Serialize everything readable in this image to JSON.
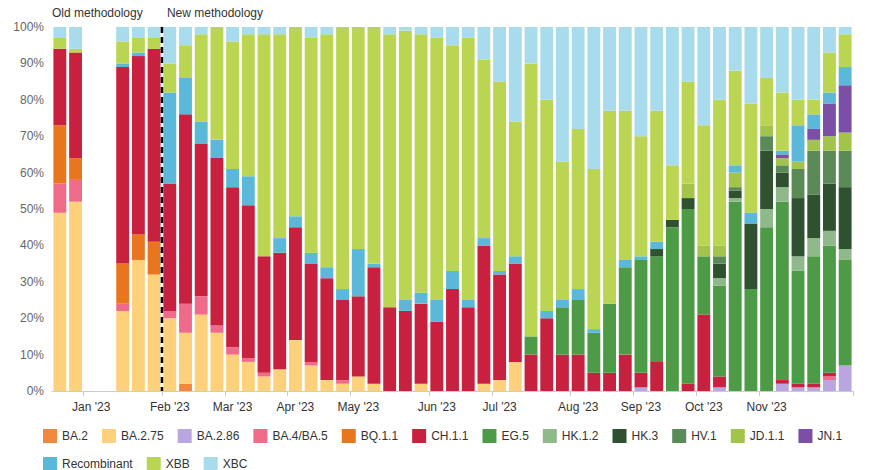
{
  "chart_data": {
    "type": "bar",
    "stacked": true,
    "legend": "bottom",
    "grid": false,
    "data_labels": false,
    "annotations": [
      {
        "text": "Old methodology",
        "x": 0
      },
      {
        "text": "New methodology",
        "x": 7
      }
    ],
    "categories": [
      null,
      null,
      "Jan '23",
      null,
      null,
      null,
      null,
      "Feb '23",
      null,
      null,
      null,
      "Mar '23",
      null,
      null,
      null,
      "Apr '23",
      null,
      null,
      null,
      "May '23",
      null,
      null,
      null,
      null,
      "Jun '23",
      null,
      null,
      null,
      "Jul '23",
      null,
      null,
      null,
      null,
      "Aug '23",
      null,
      null,
      null,
      "Sep '23",
      null,
      null,
      null,
      "Oct '23",
      null,
      null,
      null,
      "Nov '23",
      null,
      null,
      null,
      null,
      null
    ],
    "ylim": [
      0,
      100
    ],
    "yticks": [
      {
        "value": 0,
        "label": "0%"
      },
      {
        "value": 10,
        "label": "10%"
      },
      {
        "value": 20,
        "label": "20%"
      },
      {
        "value": 30,
        "label": "30%"
      },
      {
        "value": 40,
        "label": "40%"
      },
      {
        "value": 50,
        "label": "50%"
      },
      {
        "value": 60,
        "label": "60%"
      },
      {
        "value": 70,
        "label": "70%"
      },
      {
        "value": 80,
        "label": "80%"
      },
      {
        "value": 90,
        "label": "90%"
      },
      {
        "value": 100,
        "label": "100%"
      }
    ],
    "series": [
      {
        "name": "BA.2",
        "color": "#f0883e",
        "values": [
          0,
          0,
          null,
          null,
          0,
          0,
          0,
          0,
          2,
          0,
          0,
          0,
          0,
          0,
          0,
          0,
          0,
          0,
          0,
          0,
          0,
          0,
          0,
          0,
          0,
          0,
          0,
          0,
          0,
          0,
          0,
          0,
          0,
          0,
          0,
          0,
          0,
          0,
          0,
          0,
          0,
          0,
          0,
          0,
          0,
          0,
          0,
          0,
          0,
          0,
          0
        ]
      },
      {
        "name": "BA.2.75",
        "color": "#fdd17b",
        "values": [
          49,
          52,
          null,
          null,
          22,
          36,
          32,
          20,
          14,
          21,
          16,
          10,
          8,
          4,
          6,
          14,
          7,
          3,
          2,
          4,
          2,
          0,
          0,
          2,
          0,
          0,
          0,
          2,
          3,
          8,
          0,
          0,
          0,
          0,
          0,
          0,
          0,
          0,
          0,
          0,
          0,
          0,
          0,
          0,
          0,
          0,
          0,
          0,
          0,
          0,
          0
        ]
      },
      {
        "name": "BA.2.86",
        "color": "#b9a6e0",
        "values": [
          0,
          0,
          null,
          null,
          0,
          0,
          0,
          0,
          0,
          0,
          0,
          0,
          0,
          0,
          0,
          0,
          0,
          0,
          0,
          0,
          0,
          0,
          0,
          0,
          0,
          0,
          0,
          0,
          0,
          0,
          0,
          0,
          0,
          0,
          0,
          0,
          0,
          1,
          0,
          0,
          0,
          0,
          1,
          0,
          0,
          0,
          2,
          1,
          1,
          3,
          7
        ]
      },
      {
        "name": "BA.4/BA.5",
        "color": "#f06a8a",
        "values": [
          8,
          6,
          null,
          null,
          2,
          0,
          0,
          2,
          8,
          5,
          2,
          2,
          1,
          1,
          0,
          0,
          1,
          0,
          1,
          0,
          0,
          0,
          0,
          0,
          0,
          0,
          0,
          0,
          0,
          0,
          0,
          0,
          0,
          0,
          0,
          0,
          0,
          0,
          0,
          0,
          0,
          0,
          0,
          0,
          0,
          0,
          0,
          0,
          0,
          1,
          0
        ]
      },
      {
        "name": "BQ.1.1",
        "color": "#e8761f",
        "values": [
          16,
          6,
          null,
          null,
          11,
          7,
          9,
          0,
          0,
          0,
          0,
          0,
          0,
          0,
          0,
          0,
          0,
          0,
          0,
          0,
          0,
          0,
          0,
          0,
          0,
          0,
          0,
          0,
          0,
          0,
          0,
          0,
          0,
          0,
          0,
          0,
          0,
          0,
          0,
          0,
          0,
          0,
          0,
          0,
          0,
          0,
          0,
          0,
          0,
          0,
          0
        ]
      },
      {
        "name": "CH.1.1",
        "color": "#c8203f",
        "values": [
          21,
          29,
          null,
          null,
          54,
          49,
          53,
          35,
          52,
          42,
          46,
          44,
          42,
          32,
          32,
          31,
          27,
          28,
          22,
          22,
          32,
          23,
          22,
          22,
          19,
          28,
          23,
          38,
          29,
          27,
          10,
          20,
          10,
          10,
          5,
          5,
          10,
          4,
          8,
          0,
          2,
          21,
          3,
          0,
          0,
          0,
          1,
          1,
          1,
          1,
          0
        ]
      },
      {
        "name": "EG.5",
        "color": "#4e9b47",
        "values": [
          0,
          0,
          null,
          null,
          0,
          0,
          0,
          0,
          0,
          0,
          0,
          0,
          0,
          0,
          0,
          0,
          0,
          0,
          0,
          0,
          0,
          0,
          0,
          0,
          0,
          0,
          0,
          0,
          0,
          0,
          5,
          0,
          13,
          15,
          11,
          19,
          24,
          31,
          29,
          45,
          48,
          16,
          25,
          52,
          28,
          45,
          49,
          31,
          35,
          35,
          29
        ]
      },
      {
        "name": "HK.1.2",
        "color": "#8fb98a",
        "values": [
          0,
          0,
          null,
          null,
          0,
          0,
          0,
          0,
          0,
          0,
          0,
          0,
          0,
          0,
          0,
          0,
          0,
          0,
          0,
          0,
          0,
          0,
          0,
          0,
          0,
          0,
          0,
          0,
          0,
          0,
          0,
          0,
          0,
          0,
          0,
          0,
          0,
          0,
          0,
          0,
          0,
          0,
          2,
          1,
          0,
          5,
          4,
          4,
          5,
          4,
          3
        ]
      },
      {
        "name": "HK.3",
        "color": "#2f5130",
        "values": [
          0,
          0,
          null,
          null,
          0,
          0,
          0,
          0,
          0,
          0,
          0,
          0,
          0,
          0,
          0,
          0,
          0,
          0,
          0,
          0,
          0,
          0,
          0,
          0,
          0,
          0,
          0,
          0,
          0,
          0,
          0,
          0,
          0,
          0,
          0,
          0,
          0,
          0,
          2,
          2,
          3,
          0,
          4,
          2,
          18,
          16,
          4,
          16,
          12,
          13,
          17
        ]
      },
      {
        "name": "HV.1",
        "color": "#5a8a58",
        "values": [
          0,
          0,
          null,
          null,
          0,
          0,
          0,
          0,
          0,
          0,
          0,
          0,
          0,
          0,
          0,
          0,
          0,
          0,
          0,
          0,
          0,
          0,
          0,
          0,
          0,
          0,
          0,
          0,
          0,
          0,
          0,
          0,
          0,
          0,
          0,
          0,
          0,
          0,
          0,
          0,
          0,
          0,
          2,
          1,
          0,
          4,
          2,
          8,
          12,
          9,
          10
        ]
      },
      {
        "name": "JD.1.1",
        "color": "#a3c44a",
        "values": [
          0,
          0,
          null,
          null,
          0,
          0,
          0,
          0,
          0,
          0,
          0,
          0,
          0,
          0,
          0,
          0,
          0,
          0,
          0,
          0,
          0,
          0,
          0,
          0,
          0,
          0,
          0,
          0,
          0,
          0,
          0,
          0,
          0,
          0,
          0,
          0,
          0,
          0,
          0,
          0,
          4,
          3,
          3,
          4,
          0,
          3,
          2,
          2,
          3,
          4,
          5
        ]
      },
      {
        "name": "JN.1",
        "color": "#7b4fa6",
        "values": [
          0,
          0,
          null,
          null,
          0,
          0,
          0,
          0,
          0,
          0,
          0,
          0,
          0,
          0,
          0,
          0,
          0,
          0,
          0,
          0,
          0,
          0,
          0,
          0,
          0,
          0,
          0,
          0,
          0,
          0,
          0,
          0,
          0,
          0,
          0,
          0,
          0,
          0,
          0,
          0,
          0,
          0,
          0,
          0,
          0,
          0,
          1,
          0,
          3,
          9,
          13
        ]
      },
      {
        "name": "Recombinant",
        "color": "#5bb8d8",
        "values": [
          0,
          0,
          null,
          null,
          1,
          1,
          0,
          25,
          10,
          6,
          5,
          5,
          8,
          0,
          4,
          3,
          3,
          3,
          3,
          13,
          1,
          0,
          3,
          3,
          6,
          5,
          2,
          2,
          1,
          2,
          0,
          2,
          2,
          3,
          1,
          0,
          2,
          1,
          2,
          0,
          0,
          0,
          0,
          2,
          3,
          0,
          1,
          10,
          4,
          3,
          5
        ]
      },
      {
        "name": "XBB",
        "color": "#b9d552",
        "values": [
          3,
          1,
          null,
          null,
          6,
          4,
          3,
          8,
          9,
          24,
          31,
          35,
          39,
          61,
          56,
          52,
          59,
          64,
          72,
          61,
          65,
          75,
          74,
          71,
          72,
          62,
          72,
          49,
          52,
          37,
          75,
          58,
          38,
          44,
          44,
          53,
          41,
          33,
          36,
          15,
          28,
          33,
          40,
          26,
          30,
          13,
          16,
          7,
          4,
          11,
          9
        ]
      },
      {
        "name": "XBC",
        "color": "#a8dbeb",
        "values": [
          3,
          6,
          null,
          null,
          4,
          3,
          3,
          10,
          5,
          2,
          0,
          4,
          2,
          2,
          2,
          0,
          3,
          2,
          0,
          0,
          0,
          2,
          1,
          2,
          3,
          5,
          3,
          9,
          15,
          26,
          10,
          20,
          37,
          28,
          39,
          23,
          23,
          30,
          23,
          38,
          15,
          27,
          20,
          12,
          21,
          14,
          18,
          20,
          20,
          7,
          2
        ]
      }
    ]
  }
}
